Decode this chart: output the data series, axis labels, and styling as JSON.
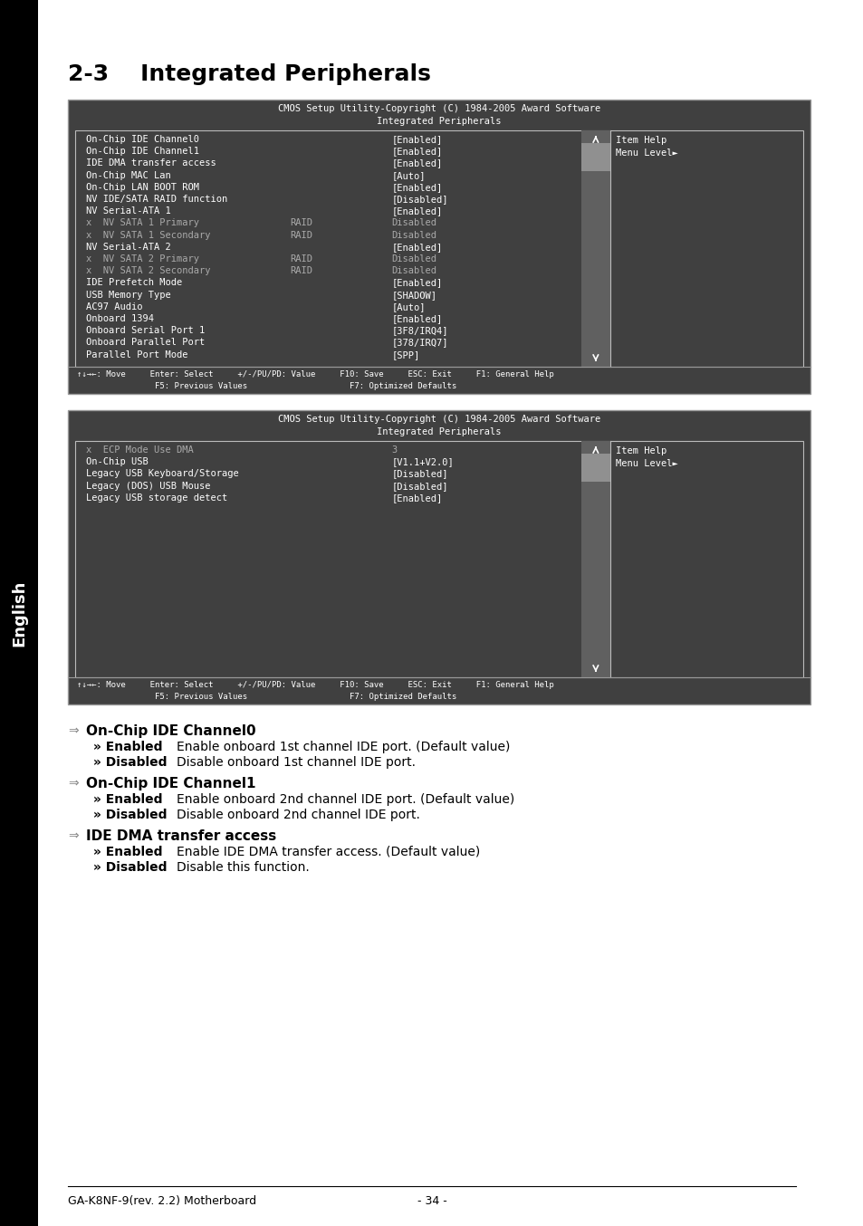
{
  "title": "2-3    Integrated Peripherals",
  "page_bg": "#ffffff",
  "footer_text": "GA-K8NF-9(rev. 2.2) Motherboard",
  "footer_page": "- 34 -",
  "bios_screen1": {
    "header1": "CMOS Setup Utility-Copyright (C) 1984-2005 Award Software",
    "header2": "Integrated Peripherals",
    "bg_color": "#404040",
    "rows": [
      {
        "label": "On-Chip IDE Channel0",
        "label2": "",
        "value": "[Enabled]",
        "dimmed": false
      },
      {
        "label": "On-Chip IDE Channel1",
        "label2": "",
        "value": "[Enabled]",
        "dimmed": false
      },
      {
        "label": "IDE DMA transfer access",
        "label2": "",
        "value": "[Enabled]",
        "dimmed": false
      },
      {
        "label": "On-Chip MAC Lan",
        "label2": "",
        "value": "[Auto]",
        "dimmed": false
      },
      {
        "label": "On-Chip LAN BOOT ROM",
        "label2": "",
        "value": "[Enabled]",
        "dimmed": false
      },
      {
        "label": "NV IDE/SATA RAID function",
        "label2": "",
        "value": "[Disabled]",
        "dimmed": false
      },
      {
        "label": "NV Serial-ATA 1",
        "label2": "",
        "value": "[Enabled]",
        "dimmed": false
      },
      {
        "label": "x  NV SATA 1 Primary",
        "label2": "RAID",
        "value": "Disabled",
        "dimmed": true
      },
      {
        "label": "x  NV SATA 1 Secondary",
        "label2": "RAID",
        "value": "Disabled",
        "dimmed": true
      },
      {
        "label": "NV Serial-ATA 2",
        "label2": "",
        "value": "[Enabled]",
        "dimmed": false
      },
      {
        "label": "x  NV SATA 2 Primary",
        "label2": "RAID",
        "value": "Disabled",
        "dimmed": true
      },
      {
        "label": "x  NV SATA 2 Secondary",
        "label2": "RAID",
        "value": "Disabled",
        "dimmed": true
      },
      {
        "label": "IDE Prefetch Mode",
        "label2": "",
        "value": "[Enabled]",
        "dimmed": false
      },
      {
        "label": "USB Memory Type",
        "label2": "",
        "value": "[SHADOW]",
        "dimmed": false
      },
      {
        "label": "AC97 Audio",
        "label2": "",
        "value": "[Auto]",
        "dimmed": false
      },
      {
        "label": "Onboard 1394",
        "label2": "",
        "value": "[Enabled]",
        "dimmed": false
      },
      {
        "label": "Onboard Serial Port 1",
        "label2": "",
        "value": "[3F8/IRQ4]",
        "dimmed": false
      },
      {
        "label": "Onboard Parallel Port",
        "label2": "",
        "value": "[378/IRQ7]",
        "dimmed": false
      },
      {
        "label": "Parallel Port Mode",
        "label2": "",
        "value": "[SPP]",
        "dimmed": false
      }
    ],
    "help_title": "Item Help",
    "help_text": "Menu Level►",
    "footer1": "↑↓→←: Move     Enter: Select     +/-/PU/PD: Value     F10: Save     ESC: Exit     F1: General Help",
    "footer2": "                F5: Previous Values                     F7: Optimized Defaults"
  },
  "bios_screen2": {
    "header1": "CMOS Setup Utility-Copyright (C) 1984-2005 Award Software",
    "header2": "Integrated Peripherals",
    "bg_color": "#404040",
    "rows": [
      {
        "label": "x  ECP Mode Use DMA",
        "label2": "",
        "value": "3",
        "dimmed": true
      },
      {
        "label": "On-Chip USB",
        "label2": "",
        "value": "[V1.1+V2.0]",
        "dimmed": false
      },
      {
        "label": "Legacy USB Keyboard/Storage",
        "label2": "",
        "value": "[Disabled]",
        "dimmed": false
      },
      {
        "label": "Legacy (DOS) USB Mouse",
        "label2": "",
        "value": "[Disabled]",
        "dimmed": false
      },
      {
        "label": "Legacy USB storage detect",
        "label2": "",
        "value": "[Enabled]",
        "dimmed": false
      }
    ],
    "help_title": "Item Help",
    "help_text": "Menu Level►",
    "footer1": "↑↓→←: Move     Enter: Select     +/-/PU/PD: Value     F10: Save     ESC: Exit     F1: General Help",
    "footer2": "                F5: Previous Values                     F7: Optimized Defaults"
  },
  "sections": [
    {
      "heading": "On-Chip IDE Channel0",
      "items": [
        {
          "bullet": "» Enabled",
          "text": "Enable onboard 1st channel IDE port. (Default value)"
        },
        {
          "bullet": "» Disabled",
          "text": "Disable onboard 1st channel IDE port."
        }
      ]
    },
    {
      "heading": "On-Chip IDE Channel1",
      "items": [
        {
          "bullet": "» Enabled",
          "text": "Enable onboard 2nd channel IDE port. (Default value)"
        },
        {
          "bullet": "» Disabled",
          "text": "Disable onboard 2nd channel IDE port."
        }
      ]
    },
    {
      "heading": "IDE DMA transfer access",
      "items": [
        {
          "bullet": "» Enabled",
          "text": "Enable IDE DMA transfer access. (Default value)"
        },
        {
          "bullet": "» Disabled",
          "text": "Disable this function."
        }
      ]
    }
  ]
}
